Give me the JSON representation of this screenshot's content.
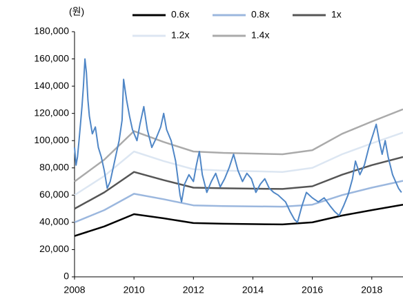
{
  "chart_data": {
    "type": "line",
    "y_label": "(원)",
    "xlim": [
      2008,
      2019.05
    ],
    "xticks": [
      2008,
      2010,
      2012,
      2014,
      2016,
      2018
    ],
    "ylim": [
      0,
      180000
    ],
    "yticks": [
      {
        "value": 0,
        "label": "0"
      },
      {
        "value": 20000,
        "label": "20,000"
      },
      {
        "value": 40000,
        "label": "40,000"
      },
      {
        "value": 60000,
        "label": "60,000"
      },
      {
        "value": 80000,
        "label": "80,000"
      },
      {
        "value": 100000,
        "label": "100,000"
      },
      {
        "value": 120000,
        "label": "120,000"
      },
      {
        "value": 140000,
        "label": "140,000"
      },
      {
        "value": 160000,
        "label": "160,000"
      },
      {
        "value": 180000,
        "label": "180,000"
      }
    ],
    "x": [
      2008,
      2009,
      2010,
      2011,
      2012,
      2013,
      2015,
      2016,
      2017,
      2018,
      2019.05
    ],
    "series": [
      {
        "color": "#4f86c6",
        "x": [
          2008,
          2008.05,
          2008.1,
          2008.15,
          2008.2,
          2008.25,
          2008.3,
          2008.35,
          2008.4,
          2008.45,
          2008.5,
          2008.6,
          2008.7,
          2008.8,
          2008.9,
          2009.0,
          2009.1,
          2009.2,
          2009.3,
          2009.4,
          2009.5,
          2009.6,
          2009.65,
          2009.75,
          2009.85,
          2009.95,
          2010.1,
          2010.2,
          2010.33,
          2010.45,
          2010.6,
          2010.75,
          2010.9,
          2011.0,
          2011.1,
          2011.25,
          2011.4,
          2011.55,
          2011.6,
          2011.7,
          2011.85,
          2012.0,
          2012.1,
          2012.2,
          2012.3,
          2012.45,
          2012.6,
          2012.75,
          2012.9,
          2013.05,
          2013.2,
          2013.35,
          2013.5,
          2013.65,
          2013.8,
          2013.95,
          2014.1,
          2014.25,
          2014.4,
          2014.55,
          2014.7,
          2014.85,
          2014.95,
          2015.1,
          2015.25,
          2015.4,
          2015.5,
          2015.65,
          2015.8,
          2016.0,
          2016.2,
          2016.4,
          2016.6,
          2016.75,
          2016.9,
          2017.05,
          2017.2,
          2017.35,
          2017.45,
          2017.6,
          2017.75,
          2017.9,
          2018.05,
          2018.15,
          2018.25,
          2018.35,
          2018.45,
          2018.55,
          2018.7,
          2018.8,
          2018.9,
          2019.0
        ],
        "values": [
          95000,
          82000,
          88000,
          100000,
          112000,
          125000,
          140000,
          160000,
          150000,
          130000,
          118000,
          105000,
          110000,
          95000,
          88000,
          78000,
          65000,
          70000,
          80000,
          90000,
          100000,
          115000,
          145000,
          130000,
          118000,
          108000,
          100000,
          112000,
          125000,
          108000,
          95000,
          102000,
          110000,
          120000,
          108000,
          100000,
          85000,
          60000,
          55000,
          68000,
          75000,
          70000,
          82000,
          92000,
          75000,
          62000,
          70000,
          76000,
          66000,
          72000,
          80000,
          90000,
          78000,
          70000,
          76000,
          72000,
          62000,
          68000,
          72000,
          65000,
          62000,
          60000,
          58000,
          55000,
          48000,
          42000,
          40000,
          52000,
          62000,
          58000,
          55000,
          58000,
          52000,
          48000,
          45000,
          52000,
          60000,
          72000,
          85000,
          75000,
          82000,
          95000,
          105000,
          112000,
          100000,
          90000,
          100000,
          88000,
          75000,
          70000,
          65000,
          62000
        ]
      },
      {
        "name": "0.6x",
        "color": "#000000",
        "values": [
          30000,
          37000,
          46000,
          43000,
          39500,
          39000,
          38500,
          40000,
          45000,
          49000,
          53000
        ]
      },
      {
        "name": "0.8x",
        "color": "#9bb7de",
        "values": [
          40000,
          49000,
          61000,
          57000,
          52500,
          52000,
          51500,
          53000,
          60000,
          65500,
          70500
        ]
      },
      {
        "name": "1x",
        "color": "#555555",
        "values": [
          50000,
          62000,
          77000,
          71000,
          65500,
          65000,
          64500,
          66500,
          75000,
          82000,
          88000
        ]
      },
      {
        "name": "1.2x",
        "color": "#dce6f2",
        "values": [
          60000,
          74000,
          92000,
          85000,
          79000,
          78000,
          77000,
          80000,
          90000,
          98000,
          106000
        ]
      },
      {
        "name": "1.4x",
        "color": "#aaaaaa",
        "values": [
          70000,
          86000,
          107000,
          99000,
          92000,
          91000,
          90000,
          93000,
          105000,
          114000,
          123000
        ]
      }
    ]
  }
}
